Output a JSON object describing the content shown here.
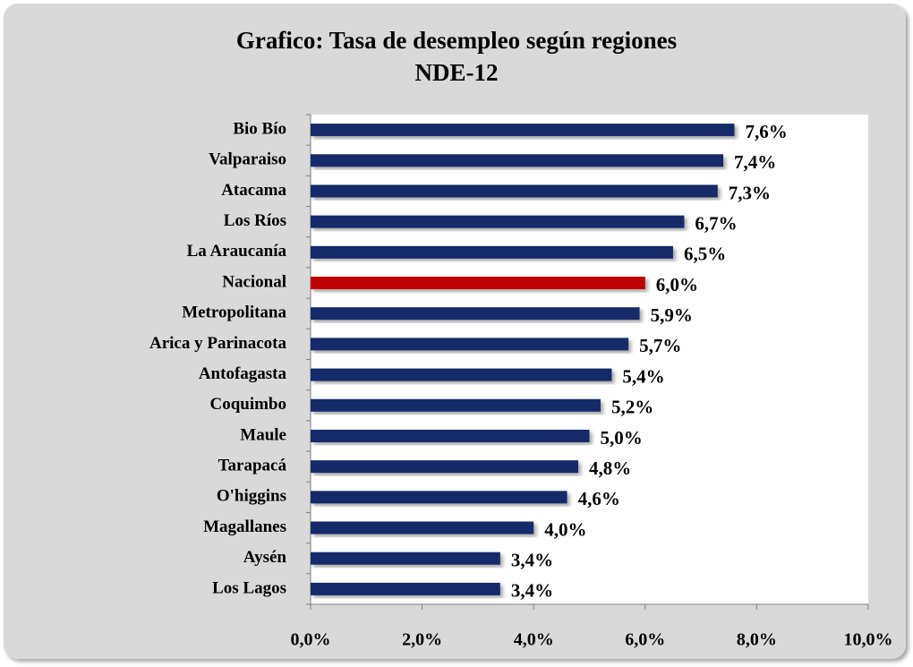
{
  "chart_data": {
    "type": "hbar",
    "title": [
      "Grafico: Tasa de desempleo  según regiones",
      "NDE-12"
    ],
    "categories": [
      "Bio Bío",
      "Valparaiso",
      "Atacama",
      "Los Ríos",
      "La Araucanía",
      "Nacional",
      "Metropolitana",
      "Arica y Parinacota",
      "Antofagasta",
      "Coquimbo",
      "Maule",
      "Tarapacá",
      "O'higgins",
      "Magallanes",
      "Aysén",
      "Los Lagos"
    ],
    "values": [
      7.6,
      7.4,
      7.3,
      6.7,
      6.5,
      6.0,
      5.9,
      5.7,
      5.4,
      5.2,
      5.0,
      4.8,
      4.6,
      4.0,
      3.4,
      3.4
    ],
    "value_labels": [
      "7,6%",
      "7,4%",
      "7,3%",
      "6,7%",
      "6,5%",
      "6,0%",
      "5,9%",
      "5,7%",
      "5,4%",
      "5,2%",
      "5,0%",
      "4,8%",
      "4,6%",
      "4,0%",
      "3,4%",
      "3,4%"
    ],
    "colors": [
      "#14296b",
      "#14296b",
      "#14296b",
      "#14296b",
      "#14296b",
      "#c00000",
      "#14296b",
      "#14296b",
      "#14296b",
      "#14296b",
      "#14296b",
      "#14296b",
      "#14296b",
      "#14296b",
      "#14296b",
      "#14296b"
    ],
    "xlim": [
      0,
      10
    ],
    "xticks": [
      {
        "value": 0,
        "label": "0,0%"
      },
      {
        "value": 2,
        "label": "2,0%"
      },
      {
        "value": 4,
        "label": "4,0%"
      },
      {
        "value": 6,
        "label": "6,0%"
      },
      {
        "value": 8,
        "label": "8,0%"
      },
      {
        "value": 10,
        "label": "10,0%"
      }
    ]
  }
}
